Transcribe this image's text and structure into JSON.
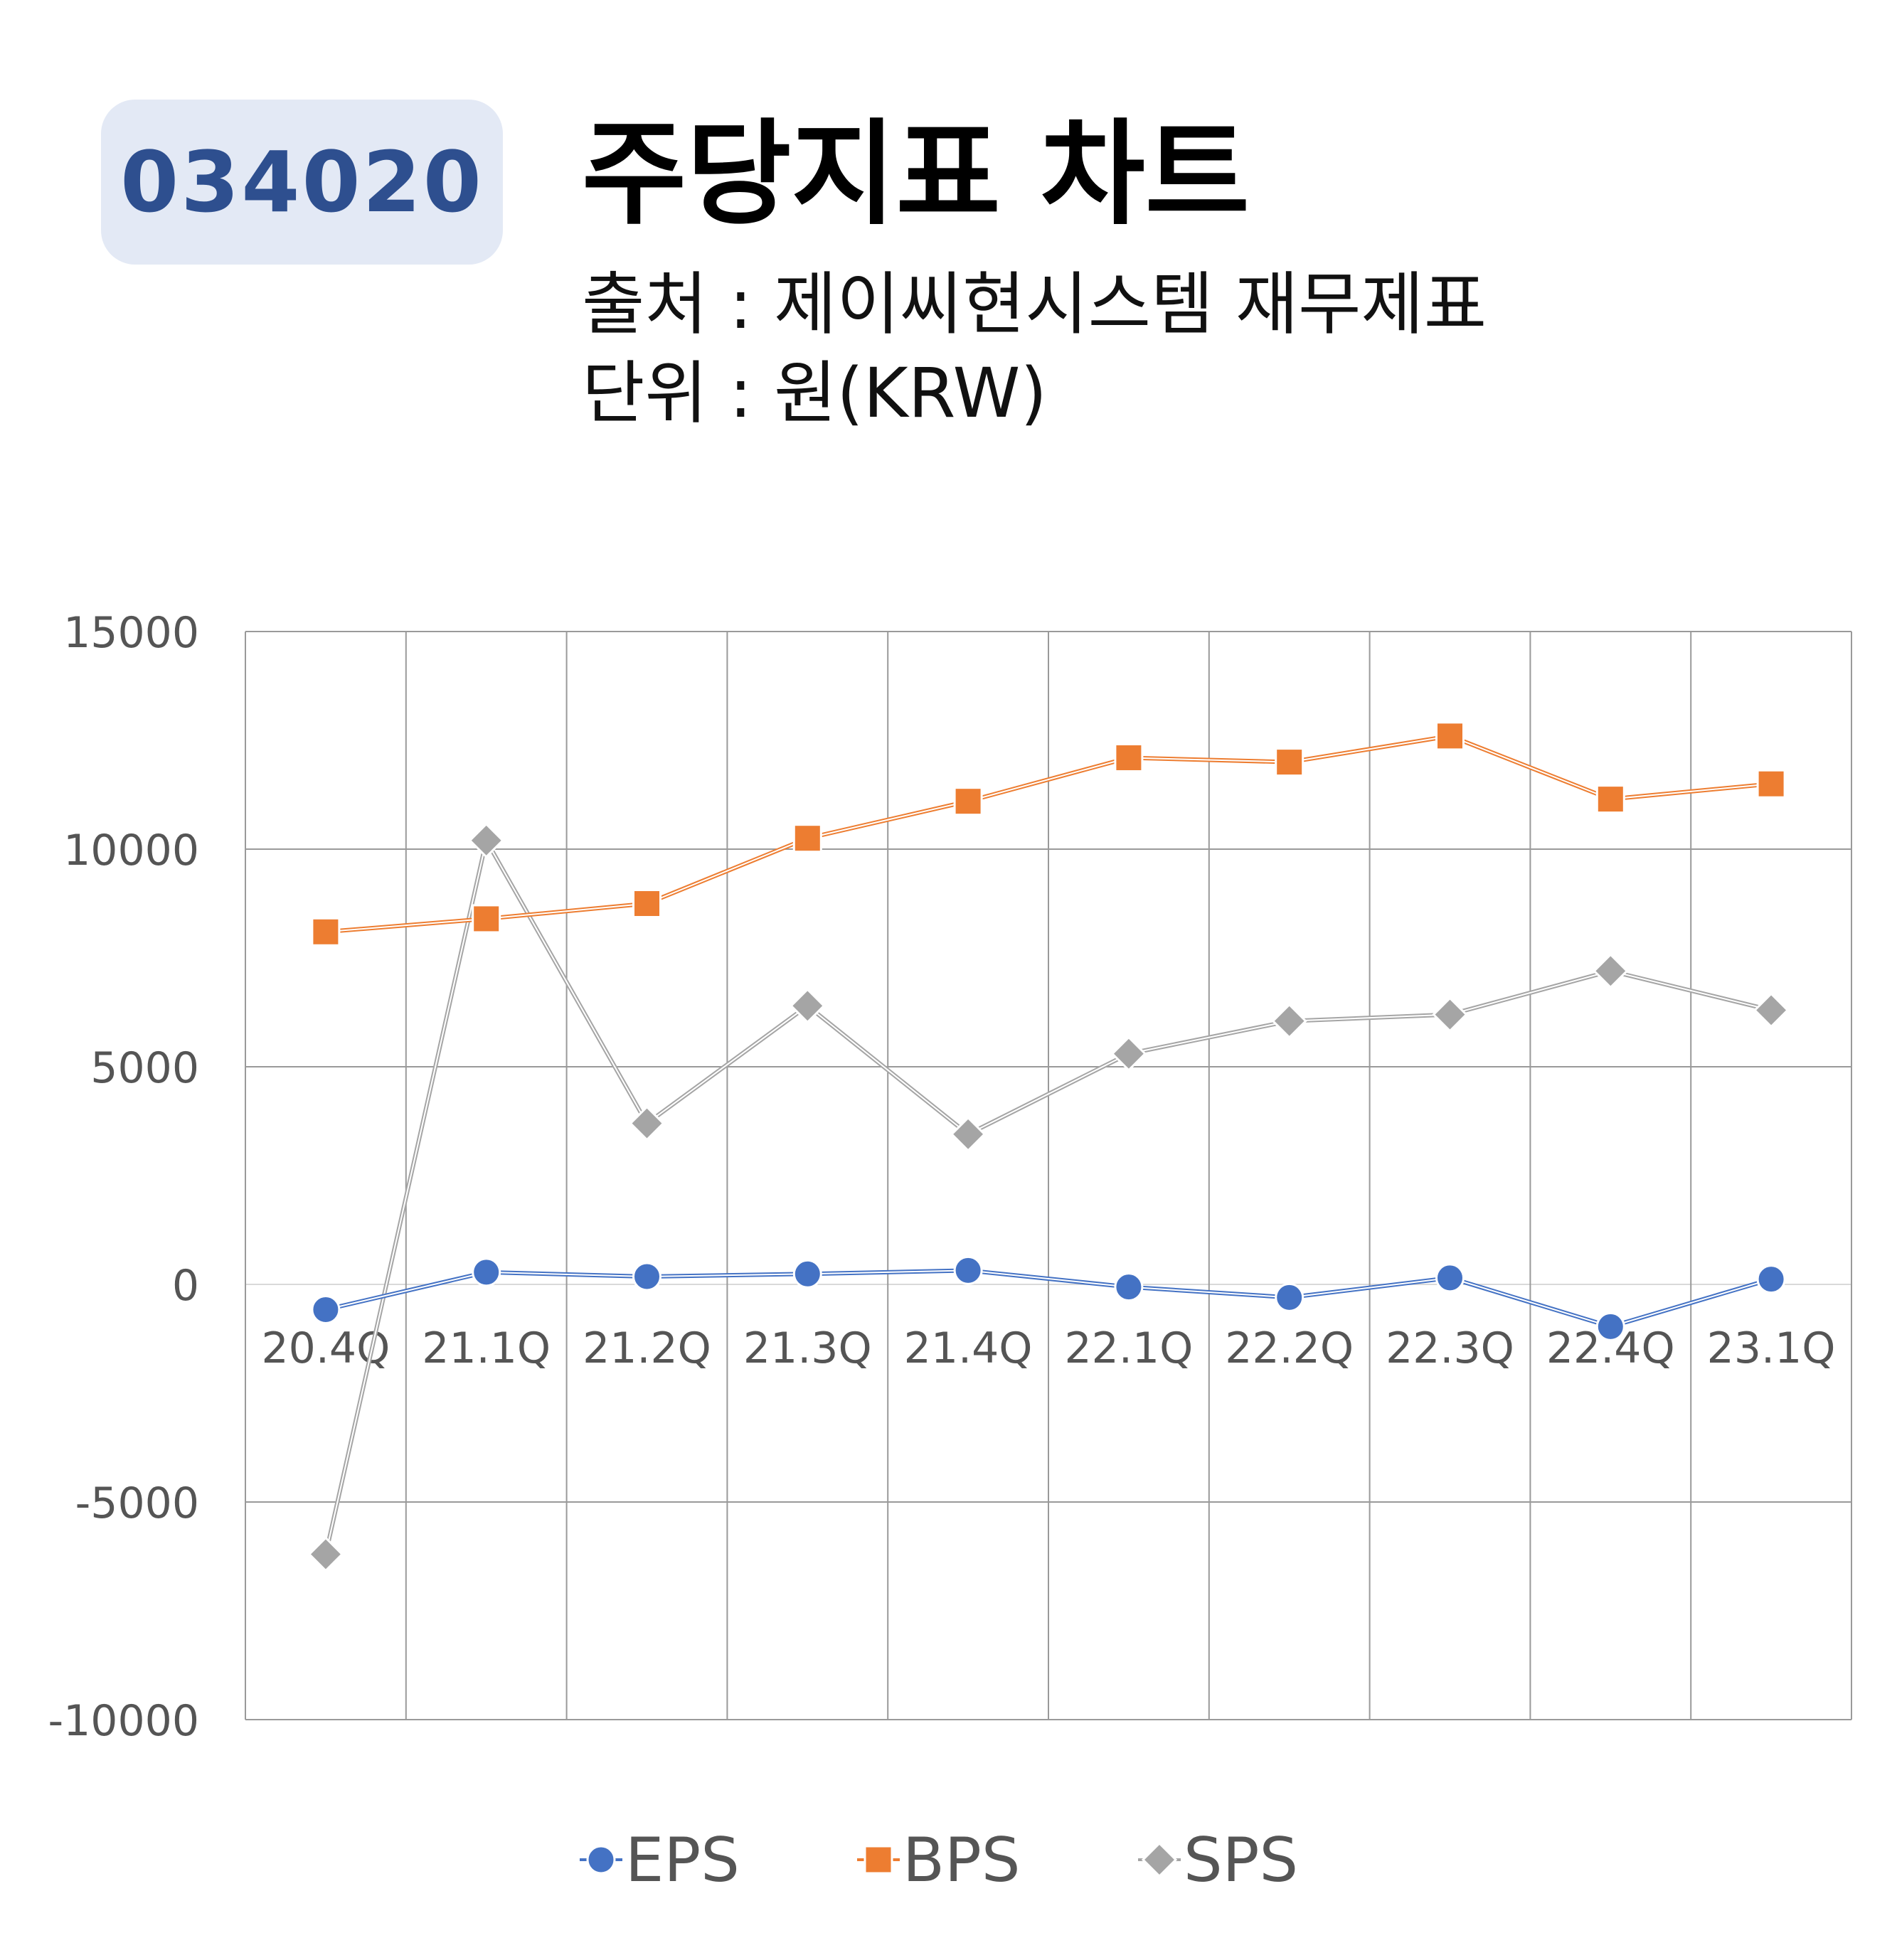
{
  "header": {
    "code": "034020",
    "title": "주당지표 차트",
    "source": "출처 : 제이씨현시스템 재무제표",
    "unit": "단위 : 원(KRW)"
  },
  "colors": {
    "EPS": "#4472c4",
    "BPS": "#ed7d31",
    "SPS": "#a5a5a5",
    "grid": "#9a9a9a",
    "badge_bg": "#e3e9f5",
    "badge_text": "#2e4f8f"
  },
  "chart_data": {
    "type": "line",
    "categories": [
      "20.4Q",
      "21.1Q",
      "21.2Q",
      "21.3Q",
      "21.4Q",
      "22.1Q",
      "22.2Q",
      "22.3Q",
      "22.4Q",
      "23.1Q"
    ],
    "series": [
      {
        "name": "EPS",
        "marker": "circle",
        "values": [
          -580,
          280,
          180,
          240,
          320,
          -60,
          -300,
          150,
          -970,
          120
        ]
      },
      {
        "name": "BPS",
        "marker": "square",
        "values": [
          8100,
          8400,
          8750,
          10250,
          11100,
          12100,
          12000,
          12600,
          11150,
          11500
        ]
      },
      {
        "name": "SPS",
        "marker": "diamond",
        "values": [
          -6200,
          10200,
          3700,
          6400,
          3450,
          5300,
          6050,
          6200,
          7200,
          6300
        ]
      }
    ],
    "yticks": [
      15000,
      10000,
      5000,
      0,
      -5000,
      -10000
    ],
    "ylim": [
      -10000,
      15000
    ],
    "title": "",
    "xlabel": "",
    "ylabel": "",
    "grid": true,
    "legend": "bottom"
  }
}
